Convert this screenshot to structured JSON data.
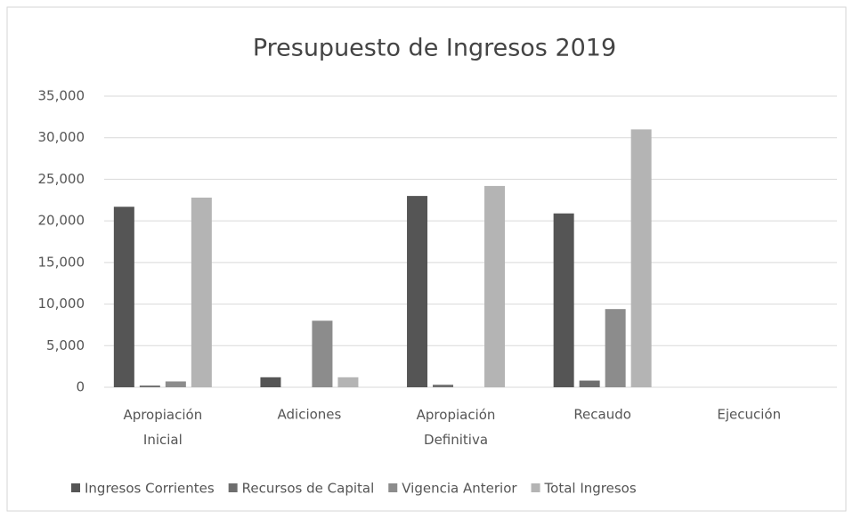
{
  "chart_data": {
    "type": "bar",
    "title": "Presupuesto de Ingresos 2019",
    "categories": [
      "Apropiación Inicial",
      "Adiciones",
      "Apropiación Definitiva",
      "Recaudo",
      "Ejecución"
    ],
    "series": [
      {
        "name": "Ingresos Corrientes",
        "color": "#555555",
        "values": [
          21700,
          1200,
          23000,
          20900,
          0
        ]
      },
      {
        "name": "Recursos de Capital",
        "color": "#6e6e6e",
        "values": [
          200,
          0,
          300,
          800,
          0
        ]
      },
      {
        "name": "Vigencia Anterior",
        "color": "#8c8c8c",
        "values": [
          700,
          8000,
          0,
          9400,
          0
        ]
      },
      {
        "name": "Total Ingresos",
        "color": "#b4b4b4",
        "values": [
          22800,
          1200,
          24200,
          31000,
          0
        ]
      }
    ],
    "ylim": [
      0,
      35000
    ],
    "yticks": [
      0,
      {
        "value": 5000,
        "label": "5,000"
      },
      {
        "value": 10000,
        "label": "10,000"
      },
      {
        "value": 15000,
        "label": "15,000"
      },
      {
        "value": 20000,
        "label": "20,000"
      },
      {
        "value": 25000,
        "label": "25,000"
      },
      {
        "value": 30000,
        "label": "30,000"
      },
      {
        "value": 35000,
        "label": "35,000"
      }
    ],
    "grid": true,
    "legend": "bottom"
  }
}
